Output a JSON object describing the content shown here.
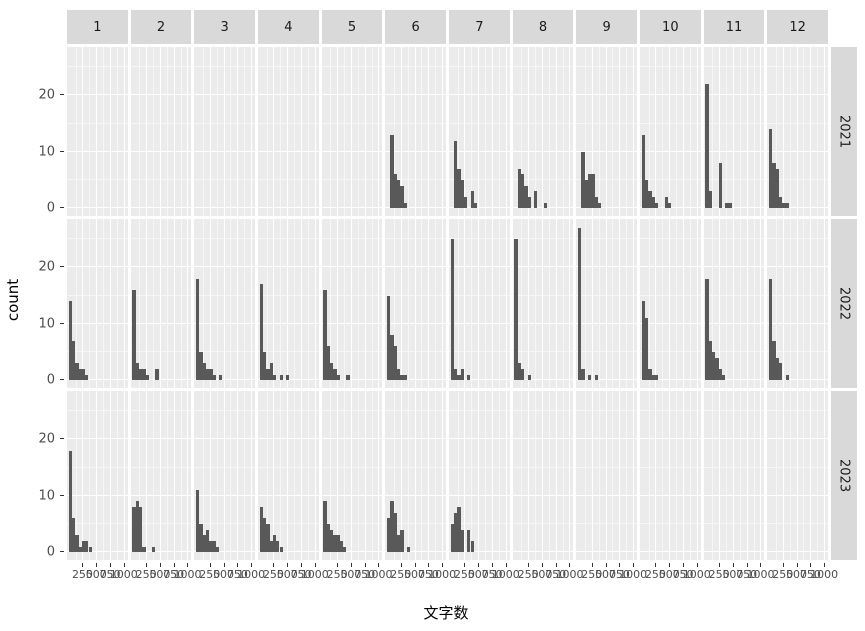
{
  "figure": {
    "background": "#FFFFFF"
  },
  "chart_data": {
    "type": "bar",
    "subtype": "faceted-histogram-grid",
    "title": "",
    "xlabel": "文字数",
    "ylabel": "count",
    "facet_cols": [
      "1",
      "2",
      "3",
      "4",
      "5",
      "6",
      "7",
      "8",
      "9",
      "10",
      "11",
      "12"
    ],
    "facet_rows": [
      "2021",
      "2022",
      "2023"
    ],
    "x_breaks": [
      250,
      500,
      750,
      1000
    ],
    "x_minor_breaks": [
      125,
      375,
      625,
      875
    ],
    "y_breaks": [
      0,
      10,
      20
    ],
    "y_minor_breaks": [
      5,
      15,
      25
    ],
    "xlim": [
      -30,
      1070
    ],
    "ylim": [
      -1.4,
      28.6
    ],
    "binwidth": 60,
    "bin_start": 0,
    "legend": "none",
    "grid": true,
    "colors": {
      "bar": "#595959",
      "panel_bg": "#EBEBEB",
      "strip_bg": "#D9D9D9",
      "gridline": "#FFFFFF",
      "axis_text": "#4D4D4D",
      "tick_mark": "#333333"
    },
    "panels": {
      "2021": {
        "1": [],
        "2": [],
        "3": [],
        "4": [],
        "5": [],
        "6": [
          0,
          13,
          6,
          5,
          4,
          1
        ],
        "7": [
          0,
          12,
          7,
          5,
          2,
          0,
          3,
          1
        ],
        "8": [
          0,
          7,
          6,
          4,
          2,
          0,
          3,
          0,
          0,
          1
        ],
        "9": [
          0,
          10,
          5,
          6,
          6,
          2,
          1
        ],
        "10": [
          13,
          5,
          3,
          2,
          1,
          0,
          0,
          2,
          1
        ],
        "11": [
          22,
          3,
          0,
          0,
          8,
          0,
          1,
          1
        ],
        "12": [
          14,
          8,
          7,
          2,
          1,
          1
        ]
      },
      "2022": {
        "1": [
          14,
          7,
          3,
          2,
          2,
          1
        ],
        "2": [
          16,
          3,
          2,
          2,
          1,
          0,
          0,
          2
        ],
        "3": [
          18,
          5,
          3,
          2,
          2,
          1,
          0,
          1
        ],
        "4": [
          17,
          5,
          2,
          3,
          1,
          0,
          1,
          0,
          1
        ],
        "5": [
          16,
          6,
          3,
          2,
          1,
          0,
          0,
          1
        ],
        "6": [
          15,
          8,
          6,
          2,
          1,
          1
        ],
        "7": [
          25,
          2,
          1,
          2,
          0,
          1
        ],
        "8": [
          25,
          3,
          2,
          0,
          1
        ],
        "9": [
          27,
          2,
          0,
          1,
          0,
          1
        ],
        "10": [
          14,
          11,
          2,
          1,
          1
        ],
        "11": [
          18,
          7,
          5,
          4,
          2,
          1
        ],
        "12": [
          18,
          7,
          4,
          3,
          0,
          1
        ]
      },
      "2023": {
        "1": [
          18,
          6,
          3,
          1,
          2,
          2,
          1
        ],
        "2": [
          8,
          9,
          8,
          1,
          0,
          0,
          1
        ],
        "3": [
          11,
          5,
          3,
          4,
          2,
          2,
          1
        ],
        "4": [
          8,
          6,
          5,
          2,
          3,
          2,
          1
        ],
        "5": [
          9,
          5,
          4,
          3,
          3,
          2,
          1
        ],
        "6": [
          6,
          9,
          7,
          3,
          4,
          0,
          1
        ],
        "7": [
          5,
          7,
          8,
          4,
          0,
          4,
          2
        ],
        "8": [],
        "9": [],
        "10": [],
        "11": [],
        "12": []
      }
    }
  }
}
